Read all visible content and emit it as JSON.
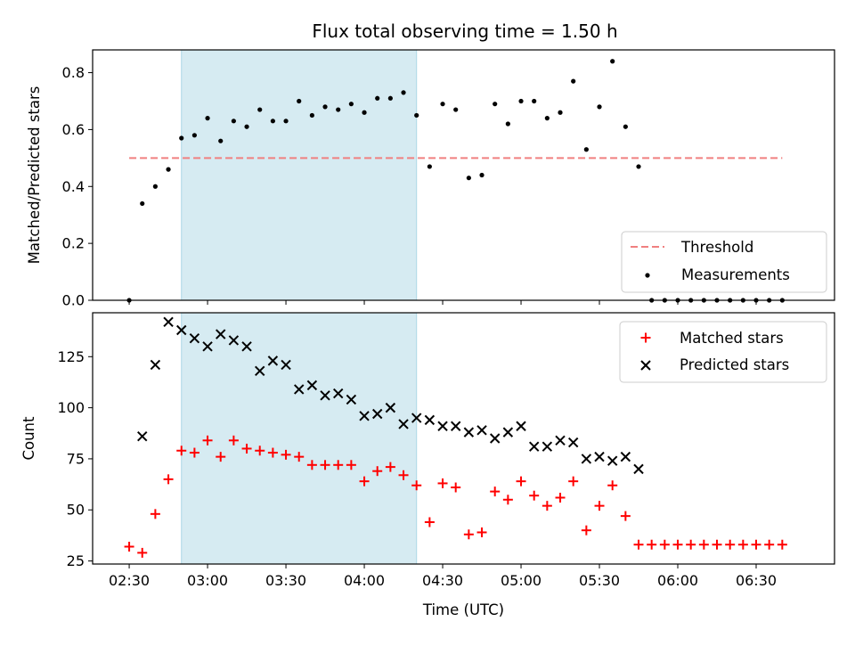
{
  "chart_data": {
    "title": "Flux total observing time = 1.50 h",
    "xlabel": "Time (UTC)",
    "x_ticks": [
      "02:30",
      "03:00",
      "03:30",
      "04:00",
      "04:30",
      "05:00",
      "05:30",
      "06:00",
      "06:30"
    ],
    "x_range": [
      "02:16",
      "07:00"
    ],
    "highlight_span": {
      "from": "02:50",
      "to": "04:20",
      "color": "#add8e6"
    },
    "colors": {
      "threshold": "#f08080",
      "measurements": "#000000",
      "matched": "#ff0000",
      "predicted": "#000000",
      "highlight": "#add8e6"
    },
    "times": [
      "02:30",
      "02:35",
      "02:40",
      "02:45",
      "02:50",
      "02:55",
      "03:00",
      "03:05",
      "03:10",
      "03:15",
      "03:20",
      "03:25",
      "03:30",
      "03:35",
      "03:40",
      "03:45",
      "03:50",
      "03:55",
      "04:00",
      "04:05",
      "04:10",
      "04:15",
      "04:20",
      "04:25",
      "04:30",
      "04:35",
      "04:40",
      "04:45",
      "04:50",
      "04:55",
      "05:00",
      "05:05",
      "05:10",
      "05:15",
      "05:20",
      "05:25",
      "05:30",
      "05:35",
      "05:40",
      "05:45",
      "05:50",
      "05:55",
      "06:00",
      "06:05",
      "06:10",
      "06:15",
      "06:20",
      "06:25",
      "06:30",
      "06:35",
      "06:40"
    ],
    "panels": [
      {
        "type": "scatter",
        "ylabel": "Matched/Predicted stars",
        "ylim": [
          0,
          0.88
        ],
        "y_ticks": [
          "0.0",
          "0.2",
          "0.4",
          "0.6",
          "0.8"
        ],
        "y_tick_values": [
          0,
          0.2,
          0.4,
          0.6,
          0.8
        ],
        "threshold": {
          "name": "Threshold",
          "value": 0.5,
          "from": "02:30",
          "to": "06:40",
          "style": "dashed"
        },
        "series": [
          {
            "name": "Measurements",
            "marker": "dot",
            "values": [
              0.0,
              0.34,
              0.4,
              0.46,
              0.57,
              0.58,
              0.64,
              0.56,
              0.63,
              0.61,
              0.67,
              0.63,
              0.63,
              0.7,
              0.65,
              0.68,
              0.67,
              0.69,
              0.66,
              0.71,
              0.71,
              0.73,
              0.65,
              0.47,
              0.69,
              0.67,
              0.43,
              0.44,
              0.69,
              0.62,
              0.7,
              0.7,
              0.64,
              0.66,
              0.77,
              0.53,
              0.68,
              0.84,
              0.61,
              0.47,
              0.0,
              0.0,
              0.0,
              0.0,
              0.0,
              0.0,
              0.0,
              0.0,
              0.0,
              0.0,
              0.0
            ]
          }
        ],
        "legend": {
          "position": "lower-right",
          "entries": [
            "Threshold",
            "Measurements"
          ]
        }
      },
      {
        "type": "scatter",
        "ylabel": "Count",
        "ylim": [
          23.5,
          146.5
        ],
        "y_ticks": [
          "25",
          "50",
          "75",
          "100",
          "125"
        ],
        "y_tick_values": [
          25,
          50,
          75,
          100,
          125
        ],
        "series": [
          {
            "name": "Matched stars",
            "marker": "plus",
            "values": [
              32,
              29,
              48,
              65,
              79,
              78,
              84,
              76,
              84,
              80,
              79,
              78,
              77,
              76,
              72,
              72,
              72,
              72,
              64,
              69,
              71,
              67,
              62,
              44,
              63,
              61,
              38,
              39,
              59,
              55,
              64,
              57,
              52,
              56,
              64,
              40,
              52,
              62,
              47,
              33,
              33,
              33,
              33,
              33,
              33,
              33,
              33,
              33,
              33,
              33,
              33
            ]
          },
          {
            "name": "Predicted stars",
            "marker": "x",
            "values": [
              null,
              86,
              121,
              142,
              138,
              134,
              130,
              136,
              133,
              130,
              118,
              123,
              121,
              109,
              111,
              106,
              107,
              104,
              96,
              97,
              100,
              92,
              95,
              94,
              91,
              91,
              88,
              89,
              85,
              88,
              91,
              81,
              81,
              84,
              83,
              75,
              76,
              74,
              76,
              70,
              null,
              null,
              null,
              null,
              null,
              null,
              null,
              null,
              null,
              null,
              null
            ]
          }
        ],
        "legend": {
          "position": "upper-right",
          "entries": [
            "Matched stars",
            "Predicted stars"
          ]
        }
      }
    ]
  }
}
